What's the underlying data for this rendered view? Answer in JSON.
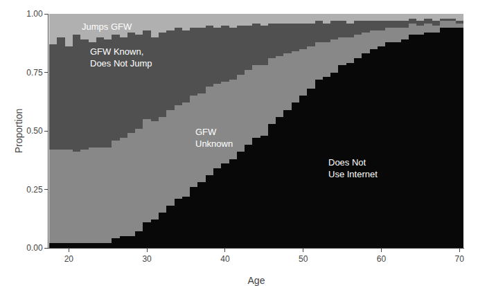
{
  "chart_data": {
    "type": "bar",
    "stacked": true,
    "grid": false,
    "xlabel": "Age",
    "ylabel": "Proportion",
    "x": [
      18,
      19,
      20,
      21,
      22,
      23,
      24,
      25,
      26,
      27,
      28,
      29,
      30,
      31,
      32,
      33,
      34,
      35,
      36,
      37,
      38,
      39,
      40,
      41,
      42,
      43,
      44,
      45,
      46,
      47,
      48,
      49,
      50,
      51,
      52,
      53,
      54,
      55,
      56,
      57,
      58,
      59,
      60,
      61,
      62,
      63,
      64,
      65,
      66,
      67,
      68,
      69,
      70
    ],
    "series": [
      {
        "color": "#080808",
        "values": [
          0.02,
          0.02,
          0.02,
          0.02,
          0.02,
          0.02,
          0.02,
          0.02,
          0.04,
          0.05,
          0.05,
          0.07,
          0.11,
          0.12,
          0.15,
          0.18,
          0.21,
          0.22,
          0.26,
          0.28,
          0.31,
          0.34,
          0.36,
          0.38,
          0.41,
          0.44,
          0.47,
          0.48,
          0.53,
          0.56,
          0.59,
          0.62,
          0.65,
          0.68,
          0.72,
          0.73,
          0.75,
          0.78,
          0.79,
          0.81,
          0.83,
          0.85,
          0.86,
          0.88,
          0.88,
          0.89,
          0.91,
          0.91,
          0.92,
          0.92,
          0.94,
          0.94,
          0.94
        ]
      },
      {
        "color": "#888888",
        "values": [
          0.4,
          0.4,
          0.4,
          0.39,
          0.4,
          0.41,
          0.41,
          0.41,
          0.42,
          0.42,
          0.44,
          0.44,
          0.44,
          0.42,
          0.41,
          0.41,
          0.4,
          0.4,
          0.39,
          0.38,
          0.38,
          0.36,
          0.35,
          0.34,
          0.33,
          0.32,
          0.31,
          0.3,
          0.28,
          0.26,
          0.24,
          0.22,
          0.2,
          0.18,
          0.16,
          0.15,
          0.14,
          0.12,
          0.11,
          0.1,
          0.09,
          0.08,
          0.07,
          0.06,
          0.06,
          0.05,
          0.05,
          0.04,
          0.04,
          0.03,
          0.03,
          0.03,
          0.02
        ]
      },
      {
        "color": "#505050",
        "values": [
          0.45,
          0.48,
          0.44,
          0.5,
          0.47,
          0.45,
          0.47,
          0.46,
          0.45,
          0.43,
          0.43,
          0.4,
          0.38,
          0.36,
          0.36,
          0.34,
          0.33,
          0.31,
          0.29,
          0.28,
          0.26,
          0.24,
          0.24,
          0.22,
          0.21,
          0.19,
          0.18,
          0.17,
          0.15,
          0.14,
          0.13,
          0.12,
          0.11,
          0.1,
          0.09,
          0.08,
          0.08,
          0.07,
          0.06,
          0.06,
          0.05,
          0.04,
          0.04,
          0.03,
          0.03,
          0.03,
          0.02,
          0.02,
          0.02,
          0.02,
          0.01,
          0.01,
          0.01
        ]
      },
      {
        "color": "#b0b0b0",
        "values": [
          0.13,
          0.1,
          0.14,
          0.09,
          0.11,
          0.12,
          0.1,
          0.11,
          0.09,
          0.1,
          0.08,
          0.09,
          0.07,
          0.1,
          0.08,
          0.07,
          0.06,
          0.07,
          0.06,
          0.06,
          0.05,
          0.06,
          0.05,
          0.06,
          0.05,
          0.05,
          0.04,
          0.05,
          0.04,
          0.04,
          0.04,
          0.04,
          0.04,
          0.04,
          0.03,
          0.04,
          0.03,
          0.03,
          0.04,
          0.03,
          0.03,
          0.03,
          0.03,
          0.03,
          0.03,
          0.03,
          0.02,
          0.03,
          0.02,
          0.03,
          0.02,
          0.02,
          0.03
        ]
      }
    ],
    "annotations": [
      {
        "text": "Jumps GFW",
        "x": 21.5,
        "y": 0.945,
        "color": "#ffffff"
      },
      {
        "text": "GFW Known,\nDoes Not Jump",
        "x": 22.5,
        "y": 0.815,
        "color": "#ffffff"
      },
      {
        "text": "GFW\nUnknown",
        "x": 36.0,
        "y": 0.47,
        "color": "#ffffff"
      },
      {
        "text": "Does Not\nUse Internet",
        "x": 53.0,
        "y": 0.34,
        "color": "#ffffff"
      }
    ],
    "xlim": [
      17.4,
      70.6
    ],
    "xticks": [
      20,
      30,
      40,
      50,
      60,
      70
    ],
    "ylim": [
      0.0,
      1.0
    ],
    "yticks": [
      {
        "value": 0.0,
        "label": "0.00"
      },
      0.25,
      {
        "value": 0.5,
        "label": "0.50"
      },
      0.75,
      {
        "value": 1.0,
        "label": "1.00"
      }
    ]
  }
}
